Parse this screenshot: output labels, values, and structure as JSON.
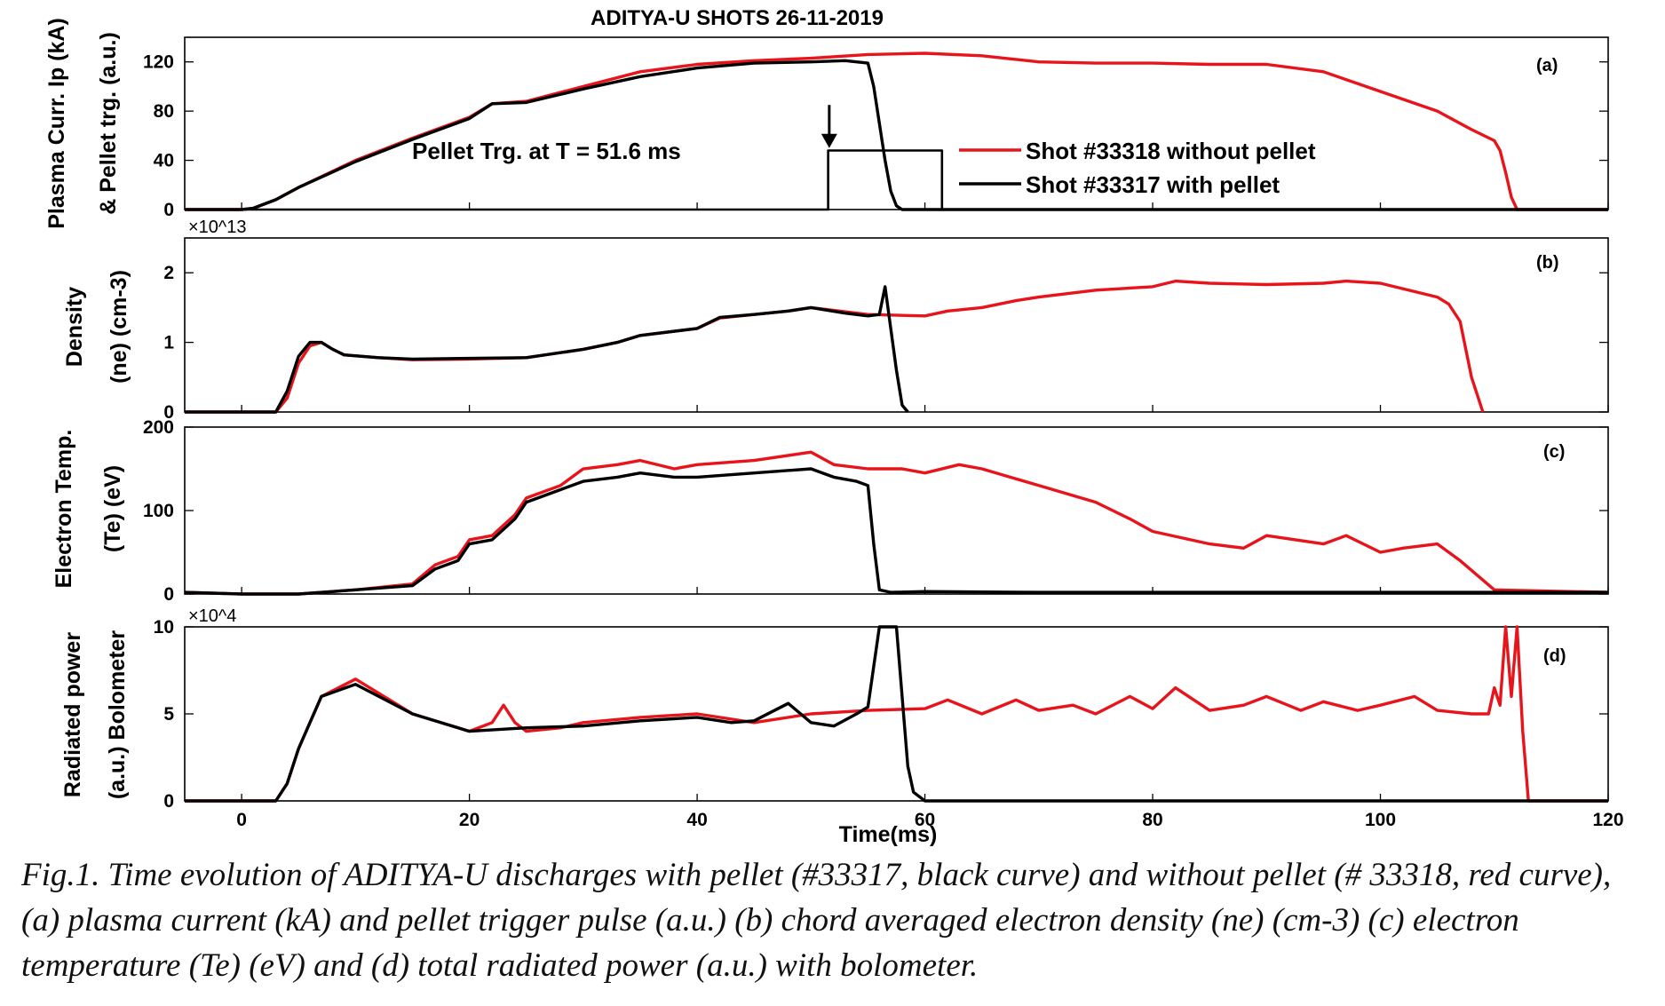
{
  "figure": {
    "title": "ADITYA-U SHOTS  26-11-2019",
    "xlabel": "Time(ms)",
    "xlim": [
      -5,
      120
    ],
    "xticks": [
      0,
      20,
      40,
      60,
      80,
      100,
      120
    ],
    "colors": {
      "with_pellet": "#000000",
      "without_pellet": "#e8141b"
    },
    "legend": [
      {
        "label": "Shot #33318 without pellet",
        "color": "#e8141b"
      },
      {
        "label": "Shot #33317 with pellet",
        "color": "#000000"
      }
    ],
    "annotation": {
      "text": "Pellet Trg. at T = 51.6 ms",
      "arrow_x": 51.6,
      "arrow_from_y": 85,
      "arrow_to_y": 50
    }
  },
  "caption": {
    "text": "Fig.1. Time evolution of ADITYA-U discharges with pellet (#33317, black curve) and without pellet (# 33318, red curve), (a) plasma current (kA) and pellet trigger pulse (a.u.) (b) chord averaged electron density (ne) (cm-3) (c) electron temperature (Te) (eV) and (d) total radiated power (a.u.) with bolometer."
  },
  "chart_data": [
    {
      "type": "line",
      "panel": "(a)",
      "ylabel_line1": "Plasma Curr. Ip (kA)",
      "ylabel_line2": "& Pellet trg. (a.u.)",
      "ylim": [
        0,
        140
      ],
      "yticks": [
        0,
        40,
        80,
        120
      ],
      "yexponent": "",
      "series": [
        {
          "name": "Shot #33318 without pellet",
          "x": [
            -5,
            0,
            1,
            3,
            5,
            10,
            15,
            20,
            22,
            25,
            30,
            35,
            40,
            45,
            50,
            55,
            60,
            65,
            70,
            75,
            80,
            85,
            90,
            95,
            100,
            105,
            108,
            110,
            110.5,
            111,
            111.5,
            112,
            120
          ],
          "y": [
            0,
            0,
            1,
            8,
            18,
            40,
            58,
            75,
            86,
            88,
            100,
            112,
            118,
            121,
            123,
            126,
            127,
            125,
            120,
            119,
            119,
            118,
            118,
            112,
            96,
            80,
            65,
            56,
            48,
            30,
            10,
            0,
            0
          ]
        },
        {
          "name": "Shot #33317 with pellet",
          "x": [
            -5,
            0,
            1,
            3,
            5,
            10,
            15,
            20,
            22,
            25,
            30,
            35,
            40,
            45,
            50,
            53,
            55,
            55.5,
            56,
            56.5,
            57,
            57.5,
            58,
            120
          ],
          "y": [
            0,
            0,
            1,
            8,
            18,
            39,
            57,
            74,
            86,
            87,
            98,
            108,
            115,
            119,
            120,
            121,
            119,
            100,
            70,
            40,
            15,
            3,
            0,
            0
          ]
        },
        {
          "name": "",
          "x": [
            -5,
            51.5,
            51.5,
            61.5,
            61.5,
            120
          ],
          "y": [
            0,
            0,
            48,
            48,
            0,
            0
          ]
        }
      ]
    },
    {
      "type": "line",
      "panel": "(b)",
      "ylabel_line1": "Density",
      "ylabel_line2": "(ne) (cm-3)",
      "ylim": [
        0,
        2.5
      ],
      "yticks": [
        0,
        1,
        2
      ],
      "yexponent": "×10^13",
      "series": [
        {
          "name": "Shot #33318 without pellet",
          "x": [
            -5,
            3,
            4,
            5,
            6,
            7,
            8,
            9,
            12,
            15,
            20,
            25,
            30,
            33,
            35,
            40,
            42,
            45,
            48,
            50,
            55,
            60,
            62,
            65,
            68,
            70,
            75,
            80,
            82,
            85,
            90,
            95,
            97,
            100,
            105,
            106,
            107,
            108,
            109
          ],
          "y": [
            0,
            0,
            0.2,
            0.7,
            0.95,
            1.0,
            0.9,
            0.82,
            0.78,
            0.75,
            0.76,
            0.78,
            0.9,
            1.0,
            1.1,
            1.2,
            1.35,
            1.4,
            1.45,
            1.5,
            1.4,
            1.38,
            1.45,
            1.5,
            1.6,
            1.65,
            1.75,
            1.8,
            1.88,
            1.85,
            1.83,
            1.85,
            1.88,
            1.85,
            1.65,
            1.55,
            1.3,
            0.5,
            0
          ]
        },
        {
          "name": "Shot #33317 with pellet",
          "x": [
            -5,
            3,
            4,
            5,
            6,
            7,
            8,
            9,
            12,
            15,
            20,
            25,
            30,
            33,
            35,
            40,
            42,
            45,
            48,
            50,
            53,
            55,
            56,
            56.5,
            57,
            57.5,
            58,
            58.5
          ],
          "y": [
            0,
            0,
            0.3,
            0.8,
            1.0,
            1.0,
            0.9,
            0.82,
            0.78,
            0.76,
            0.77,
            0.78,
            0.9,
            1.0,
            1.1,
            1.2,
            1.36,
            1.4,
            1.45,
            1.5,
            1.42,
            1.38,
            1.4,
            1.8,
            1.2,
            0.6,
            0.1,
            0
          ]
        }
      ]
    },
    {
      "type": "line",
      "panel": "(c)",
      "ylabel_line1": "Electron Temp.",
      "ylabel_line2": "(Te) (eV)",
      "ylim": [
        0,
        200
      ],
      "yticks": [
        0,
        100,
        200
      ],
      "yexponent": "",
      "series": [
        {
          "name": "Shot #33318 without pellet",
          "x": [
            -5,
            0,
            2,
            5,
            10,
            15,
            17,
            19,
            20,
            22,
            24,
            25,
            28,
            30,
            33,
            35,
            38,
            40,
            45,
            50,
            52,
            55,
            58,
            60,
            63,
            65,
            70,
            75,
            78,
            80,
            85,
            88,
            90,
            95,
            97,
            100,
            102,
            105,
            107,
            110,
            120
          ],
          "y": [
            2,
            0,
            -3,
            0,
            5,
            12,
            35,
            45,
            65,
            70,
            95,
            115,
            130,
            150,
            155,
            160,
            150,
            155,
            160,
            170,
            155,
            150,
            150,
            145,
            155,
            150,
            130,
            110,
            90,
            75,
            60,
            55,
            70,
            60,
            70,
            50,
            55,
            60,
            40,
            5,
            2
          ]
        },
        {
          "name": "Shot #33317 with pellet",
          "x": [
            -5,
            0,
            2,
            5,
            10,
            15,
            17,
            19,
            20,
            22,
            24,
            25,
            28,
            30,
            33,
            35,
            38,
            40,
            45,
            50,
            52,
            54,
            55,
            55.5,
            56,
            57,
            60,
            70,
            80,
            90,
            100,
            110,
            120
          ],
          "y": [
            2,
            0,
            -3,
            0,
            5,
            10,
            30,
            40,
            60,
            65,
            90,
            110,
            125,
            135,
            140,
            145,
            140,
            140,
            145,
            150,
            140,
            135,
            130,
            60,
            5,
            2,
            3,
            2,
            2,
            2,
            2,
            2,
            2
          ]
        }
      ]
    },
    {
      "type": "line",
      "panel": "(d)",
      "ylabel_line1": "Radiated power",
      "ylabel_line2": "(a.u.) Bolometer",
      "ylim": [
        0,
        10
      ],
      "yticks": [
        0,
        5,
        10
      ],
      "yexponent": "×10^4",
      "series": [
        {
          "name": "Shot #33318 without pellet",
          "x": [
            -5,
            3,
            4,
            5,
            7,
            10,
            15,
            20,
            22,
            23,
            24,
            25,
            28,
            30,
            35,
            40,
            45,
            50,
            55,
            60,
            62,
            65,
            68,
            70,
            73,
            75,
            78,
            80,
            82,
            85,
            88,
            90,
            93,
            95,
            98,
            100,
            103,
            105,
            108,
            109.5,
            110,
            110.5,
            111,
            111.5,
            112,
            112.5,
            113,
            120
          ],
          "y": [
            0,
            0,
            1,
            3,
            6,
            7,
            5,
            4,
            4.5,
            5.5,
            4.5,
            4,
            4.2,
            4.5,
            4.8,
            5,
            4.5,
            5,
            5.2,
            5.3,
            5.8,
            5,
            5.8,
            5.2,
            5.5,
            5,
            6,
            5.3,
            6.5,
            5.2,
            5.5,
            6,
            5.2,
            5.7,
            5.2,
            5.5,
            6,
            5.2,
            5,
            5,
            6.5,
            5.5,
            10,
            6,
            10,
            4,
            0,
            0
          ]
        },
        {
          "name": "Shot #33317 with pellet",
          "x": [
            -5,
            3,
            4,
            5,
            7,
            10,
            15,
            20,
            25,
            30,
            35,
            40,
            43,
            45,
            48,
            50,
            52,
            54,
            55,
            56,
            57,
            57.5,
            58,
            58.5,
            59,
            60,
            120
          ],
          "y": [
            0,
            0,
            1,
            3,
            6,
            6.7,
            5,
            4,
            4.2,
            4.3,
            4.6,
            4.8,
            4.5,
            4.6,
            5.6,
            4.5,
            4.3,
            5,
            5.4,
            10,
            10,
            10,
            6,
            2,
            0.5,
            0,
            0
          ]
        }
      ]
    }
  ]
}
